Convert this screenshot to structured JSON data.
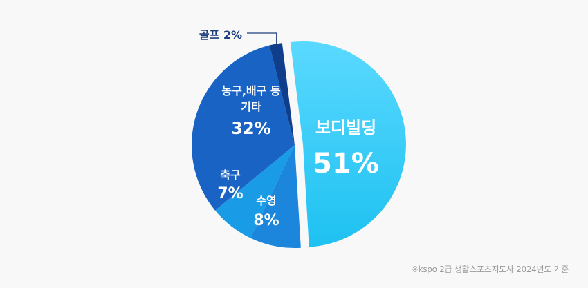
{
  "chart_data": {
    "type": "pie",
    "slices": [
      {
        "label_lines": [
          "보디빌딩"
        ],
        "value": 51,
        "pct_text": "51%",
        "color": "#35cbf6",
        "text_color": "#ffffff"
      },
      {
        "label_lines": [
          "수영"
        ],
        "value": 8,
        "pct_text": "8%",
        "color": "#1c86dd",
        "text_color": "#ffffff"
      },
      {
        "label_lines": [
          "축구"
        ],
        "value": 7,
        "pct_text": "7%",
        "color": "#1a9be6",
        "text_color": "#ffffff"
      },
      {
        "label_lines": [
          "농구,배구 등",
          "기타"
        ],
        "value": 32,
        "pct_text": "32%",
        "color": "#1863c4",
        "text_color": "#ffffff"
      },
      {
        "label_lines": [
          "골프"
        ],
        "value": 2,
        "pct_text": "2%",
        "color": "#0f3f8c",
        "text_color": "#1d3f7d"
      }
    ],
    "highlight": "보디빌딩"
  },
  "footnote": "※kspo 2급 생활스포츠지도사 2024년도 기준"
}
